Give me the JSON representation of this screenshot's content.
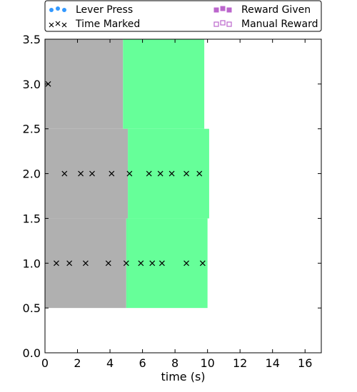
{
  "chart_data": {
    "type": "scatter",
    "xlabel": "time (s)",
    "ylabel": "",
    "xlim": [
      0,
      17
    ],
    "ylim": [
      0,
      3.5
    ],
    "xticks": [
      0,
      2,
      4,
      6,
      8,
      10,
      12,
      14,
      16
    ],
    "yticks": [
      0.0,
      0.5,
      1.0,
      1.5,
      2.0,
      2.5,
      3.0,
      3.5
    ],
    "xtick_labels": [
      "0",
      "2",
      "4",
      "6",
      "8",
      "10",
      "12",
      "14",
      "16"
    ],
    "ytick_labels": [
      "0.0",
      "0.5",
      "1.0",
      "1.5",
      "2.0",
      "2.5",
      "3.0",
      "3.5"
    ],
    "legend": {
      "placement": "top",
      "entries": [
        {
          "label": "Lever Press",
          "marker": "circle",
          "color": "#3399ff"
        },
        {
          "label": "Time Marked",
          "marker": "x",
          "color": "#000000"
        },
        {
          "label": "Reward Given",
          "marker": "square",
          "color": "#bb66cc"
        },
        {
          "label": "Manual Reward",
          "marker": "square-open",
          "color": "#bb66cc"
        }
      ]
    },
    "rows": [
      {
        "y": 1.0,
        "band": [
          0.5,
          1.5
        ],
        "gray": [
          0,
          5.0
        ],
        "green": [
          5.0,
          10.0
        ],
        "time_marked": [
          0.7,
          1.5,
          2.5,
          3.9,
          5.0,
          5.9,
          6.6,
          7.2,
          8.7,
          9.7
        ]
      },
      {
        "y": 2.0,
        "band": [
          1.5,
          2.5
        ],
        "gray": [
          0,
          5.1
        ],
        "green": [
          5.1,
          10.1
        ],
        "time_marked": [
          1.2,
          2.2,
          2.9,
          4.1,
          5.2,
          6.4,
          7.1,
          7.8,
          8.7,
          9.5
        ]
      },
      {
        "y": 3.0,
        "band": [
          2.5,
          3.5
        ],
        "gray": [
          0,
          4.8
        ],
        "green": [
          4.8,
          9.8
        ],
        "time_marked": [
          0.2
        ]
      }
    ],
    "colors": {
      "gray": "#b0b0b0",
      "green": "#66ff99"
    }
  }
}
